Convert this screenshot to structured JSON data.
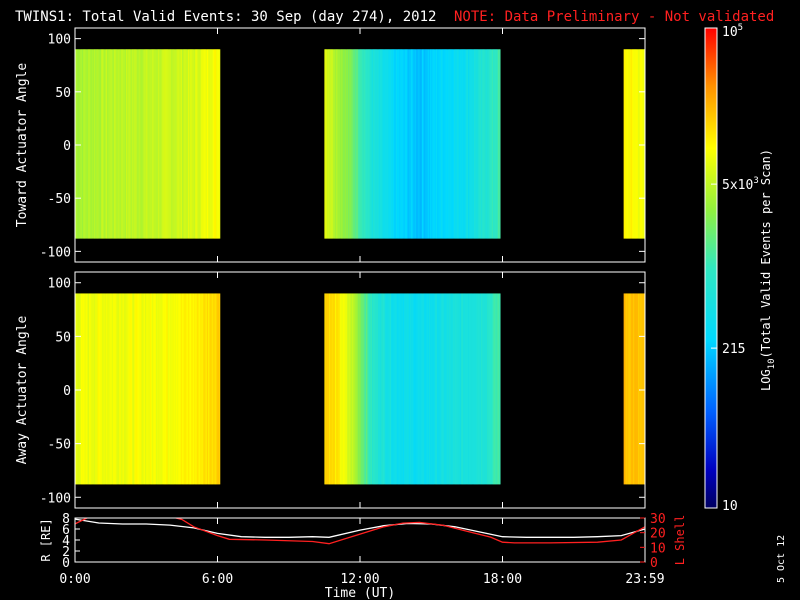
{
  "title": {
    "main": "TWINS1: Total Valid Events: 30 Sep (day 274), 2012",
    "note": "NOTE: Data Preliminary - Not validated"
  },
  "side_date": "5 Oct 12",
  "colors": {
    "background": "#000000",
    "axes": "#ffffff",
    "note": "#ff2020",
    "r_line": "#ffffff",
    "lshell_line": "#ff2020"
  },
  "chart_data": [
    {
      "type": "heatmap",
      "panel": "top",
      "ylabel": "Toward Actuator Angle",
      "ylim": [
        -110,
        110
      ],
      "yticks": [
        100,
        50,
        0,
        -50,
        -100
      ],
      "ytick_labels": [
        "100",
        "50",
        "0",
        "-50",
        "-100"
      ],
      "data_ylim": [
        -88,
        90
      ],
      "xlim_hours": [
        0,
        24
      ],
      "xticks_hours": [
        0,
        6,
        12,
        18,
        24
      ],
      "data_segments_hours": [
        [
          0,
          6.1
        ],
        [
          10.5,
          17.9
        ],
        [
          23.1,
          24
        ]
      ],
      "color_scale": "log",
      "profile_hours": [
        0,
        1,
        2,
        3,
        4,
        5,
        5.6,
        6.0,
        10.5,
        11.0,
        11.8,
        12.5,
        13.5,
        14.5,
        15.5,
        16.5,
        17.3,
        17.9,
        23.1,
        23.5,
        24
      ],
      "profile_log10": [
        3.6,
        3.65,
        3.7,
        3.7,
        3.75,
        3.8,
        3.95,
        4.0,
        3.9,
        3.65,
        3.25,
        2.75,
        2.4,
        2.3,
        2.45,
        2.6,
        2.85,
        3.1,
        4.0,
        4.0,
        3.9
      ]
    },
    {
      "type": "heatmap",
      "panel": "middle",
      "ylabel": "Away Actuator Angle",
      "ylim": [
        -110,
        110
      ],
      "yticks": [
        100,
        50,
        0,
        -50,
        -100
      ],
      "ytick_labels": [
        "100",
        "50",
        "0",
        "-50",
        "-100"
      ],
      "data_ylim": [
        -88,
        90
      ],
      "xlim_hours": [
        0,
        24
      ],
      "xticks_hours": [
        0,
        6,
        12,
        18,
        24
      ],
      "data_segments_hours": [
        [
          0,
          6.1
        ],
        [
          10.5,
          17.9
        ],
        [
          23.1,
          24
        ]
      ],
      "color_scale": "log",
      "profile_hours": [
        0,
        1,
        2,
        3,
        4,
        5,
        5.6,
        6.0,
        10.5,
        11.0,
        11.8,
        12.5,
        13.5,
        14.5,
        15.5,
        16.5,
        17.3,
        17.9,
        23.1,
        23.5,
        24
      ],
      "profile_log10": [
        3.9,
        3.95,
        3.95,
        3.95,
        4.0,
        4.05,
        4.15,
        4.25,
        4.25,
        4.1,
        3.6,
        2.9,
        2.6,
        2.55,
        2.65,
        2.75,
        2.85,
        3.15,
        4.3,
        4.3,
        4.2
      ]
    },
    {
      "type": "line",
      "panel": "bottom",
      "xlabel": "Time (UT)",
      "xtick_labels": [
        "0:00",
        "6:00",
        "12:00",
        "18:00",
        "23:59"
      ],
      "xticks_hours": [
        0,
        6,
        12,
        18,
        24
      ],
      "y_left_label": "R [RE]",
      "y_left_ticks": [
        0,
        2,
        4,
        6,
        8
      ],
      "y_left_ylim": [
        0,
        8
      ],
      "y_right_label": "L Shell",
      "y_right_ticks": [
        0,
        10,
        20,
        30
      ],
      "y_right_ylim": [
        0,
        30
      ],
      "series": [
        {
          "name": "R",
          "axis": "left",
          "x": [
            0,
            1,
            2,
            3,
            4,
            5,
            6,
            7,
            8,
            9,
            10,
            10.7,
            12,
            13,
            14,
            15,
            16,
            17,
            18,
            19,
            20,
            21,
            22,
            23,
            24
          ],
          "y": [
            7.8,
            7.1,
            6.9,
            6.9,
            6.7,
            6.2,
            5.2,
            4.6,
            4.5,
            4.5,
            4.6,
            4.5,
            5.8,
            6.6,
            7.0,
            6.9,
            6.4,
            5.5,
            4.6,
            4.5,
            4.5,
            4.5,
            4.6,
            4.8,
            6.0
          ]
        },
        {
          "name": "L Shell",
          "axis": "right",
          "x": [
            0,
            0.5,
            1,
            4,
            4.5,
            5,
            6,
            6.5,
            8,
            10,
            10.7,
            12,
            13,
            13.8,
            14.5,
            15.5,
            16.5,
            17.5,
            18,
            18.5,
            20,
            22,
            23,
            24
          ],
          "y": [
            26,
            30,
            31,
            31,
            29,
            24,
            18,
            15.5,
            15,
            14,
            12.5,
            19,
            24,
            26.5,
            27,
            25,
            21,
            17,
            13.5,
            13,
            13,
            13.5,
            15,
            24
          ]
        }
      ]
    },
    {
      "type": "colorbar",
      "label": "LOG10(Total Valid Events per Scan)",
      "label_main": "LOG",
      "label_sub": "10",
      "label_rest": "(Total Valid Events per Scan)",
      "scale": "log",
      "range": [
        10,
        100000
      ],
      "tick_values": [
        100000,
        5000,
        215,
        10
      ],
      "tick_labels": [
        {
          "base": "10",
          "sup": "5"
        },
        {
          "base": "5x10",
          "sup": "3"
        },
        {
          "base": "215",
          "sup": ""
        },
        {
          "base": "10",
          "sup": ""
        }
      ]
    }
  ]
}
